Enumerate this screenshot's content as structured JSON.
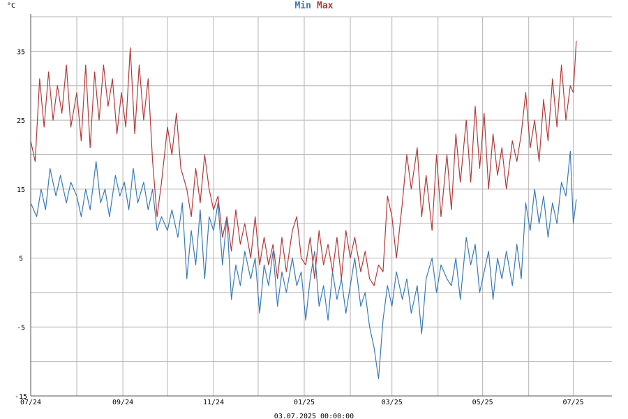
{
  "chart_data": {
    "type": "line",
    "unit_label": "°C",
    "timestamp": "03.07.2025 00:00:00",
    "ylim": [
      -15,
      40
    ],
    "yticks": [
      -15,
      -5,
      5,
      15,
      25,
      35
    ],
    "y_gridlines": [
      -15,
      -10,
      -5,
      0,
      5,
      10,
      15,
      20,
      25,
      30,
      35,
      40
    ],
    "x_range": [
      "2024-07-01",
      "2025-07-27"
    ],
    "xticks": [
      {
        "date": "2024-07-01",
        "label": "07/24"
      },
      {
        "date": "2024-09-01",
        "label": "09/24"
      },
      {
        "date": "2024-11-01",
        "label": "11/24"
      },
      {
        "date": "2025-01-01",
        "label": "01/25"
      },
      {
        "date": "2025-03-01",
        "label": "03/25"
      },
      {
        "date": "2025-05-01",
        "label": "05/25"
      },
      {
        "date": "2025-07-01",
        "label": "07/25"
      }
    ],
    "x_gridlines": [
      "2024-07-01",
      "2024-08-01",
      "2024-09-01",
      "2024-10-01",
      "2024-11-01",
      "2024-12-01",
      "2025-01-01",
      "2025-02-01",
      "2025-03-01",
      "2025-04-01",
      "2025-05-01",
      "2025-06-01",
      "2025-07-01"
    ],
    "grid": true,
    "legend_position": "top-center",
    "series": [
      {
        "name": "Min",
        "color": "#3a7ab5",
        "points": [
          [
            "2024-07-01",
            13
          ],
          [
            "2024-07-05",
            11
          ],
          [
            "2024-07-08",
            15
          ],
          [
            "2024-07-11",
            12
          ],
          [
            "2024-07-14",
            18
          ],
          [
            "2024-07-18",
            14
          ],
          [
            "2024-07-21",
            17
          ],
          [
            "2024-07-25",
            13
          ],
          [
            "2024-07-28",
            16
          ],
          [
            "2024-08-01",
            14
          ],
          [
            "2024-08-04",
            11
          ],
          [
            "2024-08-07",
            15
          ],
          [
            "2024-08-10",
            12
          ],
          [
            "2024-08-14",
            19
          ],
          [
            "2024-08-17",
            13
          ],
          [
            "2024-08-20",
            15
          ],
          [
            "2024-08-23",
            11
          ],
          [
            "2024-08-27",
            17
          ],
          [
            "2024-08-30",
            14
          ],
          [
            "2024-09-02",
            16
          ],
          [
            "2024-09-05",
            12
          ],
          [
            "2024-09-08",
            18
          ],
          [
            "2024-09-11",
            13
          ],
          [
            "2024-09-15",
            16
          ],
          [
            "2024-09-18",
            12
          ],
          [
            "2024-09-21",
            15
          ],
          [
            "2024-09-24",
            9
          ],
          [
            "2024-09-27",
            11
          ],
          [
            "2024-10-01",
            9
          ],
          [
            "2024-10-04",
            12
          ],
          [
            "2024-10-08",
            8
          ],
          [
            "2024-10-11",
            13
          ],
          [
            "2024-10-14",
            2
          ],
          [
            "2024-10-17",
            9
          ],
          [
            "2024-10-20",
            4
          ],
          [
            "2024-10-23",
            12
          ],
          [
            "2024-10-26",
            2
          ],
          [
            "2024-10-29",
            11
          ],
          [
            "2024-11-01",
            9
          ],
          [
            "2024-11-04",
            13
          ],
          [
            "2024-11-07",
            4
          ],
          [
            "2024-11-10",
            11
          ],
          [
            "2024-11-13",
            -1
          ],
          [
            "2024-11-16",
            4
          ],
          [
            "2024-11-19",
            1
          ],
          [
            "2024-11-22",
            6
          ],
          [
            "2024-11-26",
            2
          ],
          [
            "2024-11-29",
            5
          ],
          [
            "2024-12-02",
            -3
          ],
          [
            "2024-12-05",
            4
          ],
          [
            "2024-12-08",
            1
          ],
          [
            "2024-12-11",
            6
          ],
          [
            "2024-12-14",
            -2
          ],
          [
            "2024-12-17",
            3
          ],
          [
            "2024-12-20",
            0
          ],
          [
            "2024-12-24",
            5
          ],
          [
            "2024-12-27",
            1
          ],
          [
            "2024-12-30",
            3
          ],
          [
            "2025-01-02",
            -4
          ],
          [
            "2025-01-05",
            2
          ],
          [
            "2025-01-08",
            6
          ],
          [
            "2025-01-11",
            -2
          ],
          [
            "2025-01-14",
            1
          ],
          [
            "2025-01-17",
            -4
          ],
          [
            "2025-01-20",
            3
          ],
          [
            "2025-01-23",
            -1
          ],
          [
            "2025-01-26",
            2
          ],
          [
            "2025-01-29",
            -3
          ],
          [
            "2025-02-01",
            1
          ],
          [
            "2025-02-04",
            5
          ],
          [
            "2025-02-08",
            -2
          ],
          [
            "2025-02-11",
            0
          ],
          [
            "2025-02-14",
            -5
          ],
          [
            "2025-02-17",
            -8
          ],
          [
            "2025-02-20",
            -12.5
          ],
          [
            "2025-02-23",
            -4
          ],
          [
            "2025-02-26",
            1
          ],
          [
            "2025-03-01",
            -2
          ],
          [
            "2025-03-04",
            3
          ],
          [
            "2025-03-08",
            -1
          ],
          [
            "2025-03-11",
            2
          ],
          [
            "2025-03-14",
            -3
          ],
          [
            "2025-03-18",
            1
          ],
          [
            "2025-03-21",
            -6
          ],
          [
            "2025-03-24",
            2
          ],
          [
            "2025-03-28",
            5
          ],
          [
            "2025-03-31",
            0
          ],
          [
            "2025-04-03",
            4
          ],
          [
            "2025-04-07",
            2
          ],
          [
            "2025-04-10",
            1
          ],
          [
            "2025-04-13",
            5
          ],
          [
            "2025-04-16",
            -1
          ],
          [
            "2025-04-20",
            8
          ],
          [
            "2025-04-23",
            4
          ],
          [
            "2025-04-26",
            7
          ],
          [
            "2025-04-29",
            0
          ],
          [
            "2025-05-02",
            3
          ],
          [
            "2025-05-05",
            6
          ],
          [
            "2025-05-08",
            -1
          ],
          [
            "2025-05-11",
            5
          ],
          [
            "2025-05-14",
            2
          ],
          [
            "2025-05-17",
            6
          ],
          [
            "2025-05-21",
            1
          ],
          [
            "2025-05-24",
            7
          ],
          [
            "2025-05-27",
            2
          ],
          [
            "2025-05-30",
            13
          ],
          [
            "2025-06-02",
            9
          ],
          [
            "2025-06-05",
            15
          ],
          [
            "2025-06-08",
            10
          ],
          [
            "2025-06-11",
            14
          ],
          [
            "2025-06-14",
            8
          ],
          [
            "2025-06-17",
            13
          ],
          [
            "2025-06-20",
            10
          ],
          [
            "2025-06-23",
            16
          ],
          [
            "2025-06-26",
            14
          ],
          [
            "2025-06-29",
            20.5
          ],
          [
            "2025-07-01",
            10
          ],
          [
            "2025-07-03",
            13.5
          ]
        ]
      },
      {
        "name": "Max",
        "color": "#b33a3a",
        "points": [
          [
            "2024-07-01",
            22
          ],
          [
            "2024-07-04",
            19
          ],
          [
            "2024-07-07",
            31
          ],
          [
            "2024-07-10",
            24
          ],
          [
            "2024-07-13",
            32
          ],
          [
            "2024-07-16",
            25
          ],
          [
            "2024-07-19",
            30
          ],
          [
            "2024-07-22",
            26
          ],
          [
            "2024-07-25",
            33
          ],
          [
            "2024-07-28",
            24
          ],
          [
            "2024-08-01",
            29
          ],
          [
            "2024-08-04",
            22
          ],
          [
            "2024-08-07",
            33
          ],
          [
            "2024-08-10",
            21
          ],
          [
            "2024-08-13",
            32
          ],
          [
            "2024-08-16",
            25
          ],
          [
            "2024-08-19",
            33
          ],
          [
            "2024-08-22",
            27
          ],
          [
            "2024-08-25",
            31
          ],
          [
            "2024-08-28",
            23
          ],
          [
            "2024-08-31",
            29
          ],
          [
            "2024-09-03",
            24
          ],
          [
            "2024-09-06",
            35.5
          ],
          [
            "2024-09-09",
            23
          ],
          [
            "2024-09-12",
            33
          ],
          [
            "2024-09-15",
            25
          ],
          [
            "2024-09-18",
            31
          ],
          [
            "2024-09-21",
            19
          ],
          [
            "2024-09-24",
            11
          ],
          [
            "2024-09-27",
            16
          ],
          [
            "2024-10-01",
            24
          ],
          [
            "2024-10-04",
            20
          ],
          [
            "2024-10-07",
            26
          ],
          [
            "2024-10-10",
            18
          ],
          [
            "2024-10-14",
            15
          ],
          [
            "2024-10-17",
            11
          ],
          [
            "2024-10-20",
            18
          ],
          [
            "2024-10-23",
            13
          ],
          [
            "2024-10-26",
            20
          ],
          [
            "2024-10-29",
            15
          ],
          [
            "2024-11-01",
            12
          ],
          [
            "2024-11-04",
            14
          ],
          [
            "2024-11-07",
            8
          ],
          [
            "2024-11-10",
            11
          ],
          [
            "2024-11-13",
            6
          ],
          [
            "2024-11-16",
            12
          ],
          [
            "2024-11-19",
            7
          ],
          [
            "2024-11-22",
            10
          ],
          [
            "2024-11-26",
            5
          ],
          [
            "2024-11-29",
            11
          ],
          [
            "2024-12-02",
            4
          ],
          [
            "2024-12-05",
            8
          ],
          [
            "2024-12-08",
            4
          ],
          [
            "2024-12-11",
            7
          ],
          [
            "2024-12-14",
            2
          ],
          [
            "2024-12-17",
            8
          ],
          [
            "2024-12-20",
            3
          ],
          [
            "2024-12-24",
            9
          ],
          [
            "2024-12-27",
            11
          ],
          [
            "2024-12-30",
            5
          ],
          [
            "2025-01-02",
            4
          ],
          [
            "2025-01-05",
            8
          ],
          [
            "2025-01-08",
            2
          ],
          [
            "2025-01-11",
            9
          ],
          [
            "2025-01-14",
            4
          ],
          [
            "2025-01-17",
            7
          ],
          [
            "2025-01-20",
            3
          ],
          [
            "2025-01-23",
            8
          ],
          [
            "2025-01-26",
            2
          ],
          [
            "2025-01-29",
            9
          ],
          [
            "2025-02-01",
            5
          ],
          [
            "2025-02-04",
            8
          ],
          [
            "2025-02-08",
            3
          ],
          [
            "2025-02-11",
            6
          ],
          [
            "2025-02-14",
            2
          ],
          [
            "2025-02-17",
            1
          ],
          [
            "2025-02-20",
            4
          ],
          [
            "2025-02-23",
            3
          ],
          [
            "2025-02-26",
            14
          ],
          [
            "2025-03-01",
            11
          ],
          [
            "2025-03-04",
            5
          ],
          [
            "2025-03-08",
            13
          ],
          [
            "2025-03-11",
            20
          ],
          [
            "2025-03-14",
            15
          ],
          [
            "2025-03-18",
            21
          ],
          [
            "2025-03-21",
            11
          ],
          [
            "2025-03-24",
            17
          ],
          [
            "2025-03-28",
            9
          ],
          [
            "2025-03-31",
            20
          ],
          [
            "2025-04-03",
            11
          ],
          [
            "2025-04-07",
            20
          ],
          [
            "2025-04-10",
            12
          ],
          [
            "2025-04-13",
            23
          ],
          [
            "2025-04-16",
            16
          ],
          [
            "2025-04-20",
            25
          ],
          [
            "2025-04-23",
            16
          ],
          [
            "2025-04-26",
            27
          ],
          [
            "2025-04-29",
            18
          ],
          [
            "2025-05-02",
            26
          ],
          [
            "2025-05-05",
            15
          ],
          [
            "2025-05-08",
            23
          ],
          [
            "2025-05-11",
            17
          ],
          [
            "2025-05-14",
            21
          ],
          [
            "2025-05-17",
            15
          ],
          [
            "2025-05-21",
            22
          ],
          [
            "2025-05-24",
            19
          ],
          [
            "2025-05-27",
            23
          ],
          [
            "2025-05-30",
            29
          ],
          [
            "2025-06-02",
            21
          ],
          [
            "2025-06-05",
            25
          ],
          [
            "2025-06-08",
            19
          ],
          [
            "2025-06-11",
            28
          ],
          [
            "2025-06-14",
            22
          ],
          [
            "2025-06-17",
            31
          ],
          [
            "2025-06-20",
            24
          ],
          [
            "2025-06-23",
            33
          ],
          [
            "2025-06-26",
            25
          ],
          [
            "2025-06-29",
            30
          ],
          [
            "2025-07-01",
            29
          ],
          [
            "2025-07-03",
            36.5
          ]
        ]
      }
    ]
  }
}
